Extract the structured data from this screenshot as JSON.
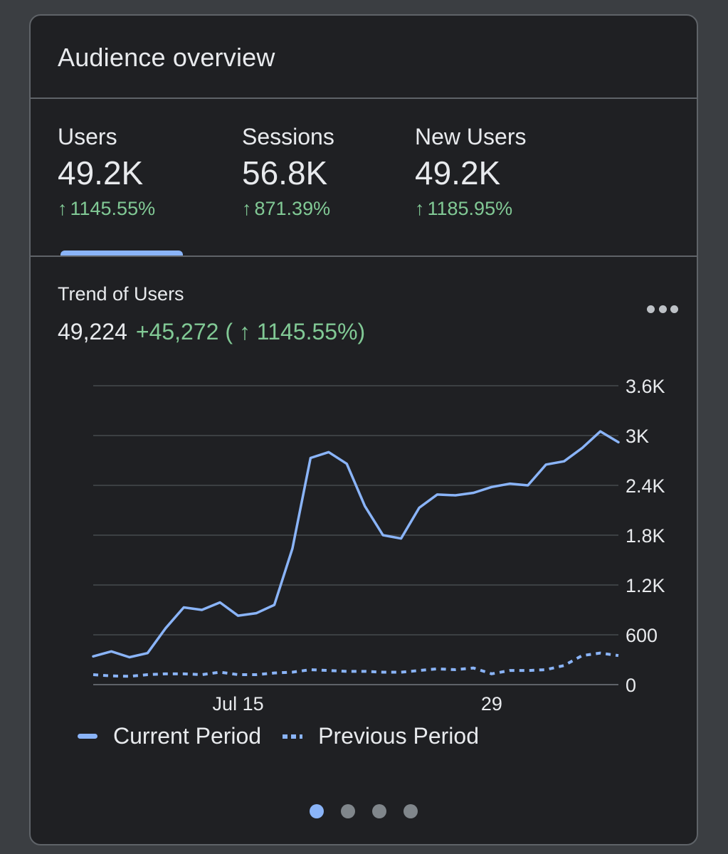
{
  "card": {
    "title": "Audience overview"
  },
  "metrics": [
    {
      "label": "Users",
      "value": "49.2K",
      "change": "1145.55%",
      "arrow": "↑"
    },
    {
      "label": "Sessions",
      "value": "56.8K",
      "change": "871.39%",
      "arrow": "↑"
    },
    {
      "label": "New Users",
      "value": "49.2K",
      "change": "1185.95%",
      "arrow": "↑"
    }
  ],
  "selected_tab": "Users",
  "trend": {
    "title": "Trend of Users",
    "total": "49,224",
    "delta": "+45,272 ( ↑ 1145.55%)"
  },
  "more_icon": "more-horizontal-icon",
  "colors": {
    "accent": "#8ab4f8",
    "positive": "#81c995",
    "background": "#1f2023"
  },
  "chart_data": {
    "type": "line",
    "ylim": [
      0,
      3600
    ],
    "yticks": [
      "0",
      "600",
      "1.2K",
      "1.8K",
      "2.4K",
      "3K",
      "3.6K"
    ],
    "ytick_values": [
      0,
      600,
      1200,
      1800,
      2400,
      3000,
      3600
    ],
    "xticks": [
      {
        "label": "Jul 15",
        "index": 8
      },
      {
        "label": "29",
        "index": 22
      }
    ],
    "grid": true,
    "legend_position": "bottom-left",
    "series": [
      {
        "name": "Current Period",
        "style": "solid",
        "values": [
          340,
          400,
          330,
          380,
          680,
          930,
          900,
          990,
          830,
          860,
          960,
          1640,
          2730,
          2800,
          2660,
          2150,
          1800,
          1760,
          2130,
          2290,
          2280,
          2310,
          2380,
          2420,
          2400,
          2650,
          2690,
          2850,
          3050,
          2920
        ]
      },
      {
        "name": "Previous Period",
        "style": "dashed",
        "values": [
          120,
          105,
          100,
          120,
          130,
          130,
          120,
          150,
          120,
          120,
          140,
          150,
          180,
          170,
          160,
          160,
          150,
          150,
          170,
          190,
          180,
          200,
          130,
          170,
          170,
          180,
          230,
          350,
          380,
          350
        ]
      }
    ]
  },
  "pager": {
    "pages": 4,
    "active": 0
  }
}
